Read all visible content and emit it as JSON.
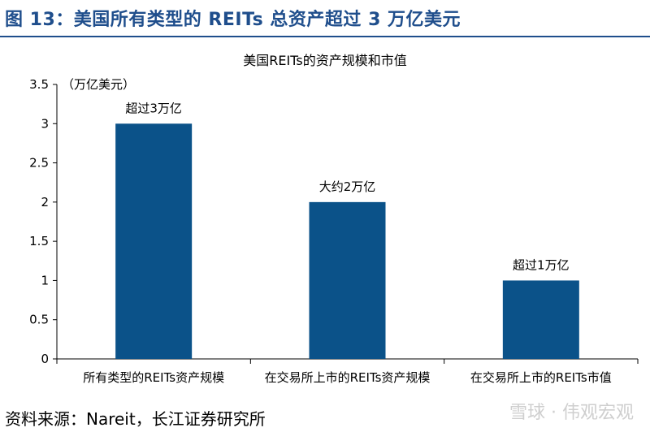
{
  "figure_title": "图 13：美国所有类型的 REITs 总资产超过 3 万亿美元",
  "source": "资料来源：Nareit，长江证券研究所",
  "watermark": "雪球 · 伟观宏观",
  "chart_data": {
    "type": "bar",
    "title": "美国REITs的资产规模和市值",
    "ylabel": "（万亿美元）",
    "xlabel": "",
    "ylim": [
      0,
      3.5
    ],
    "yticks": [
      0,
      0.5,
      1,
      1.5,
      2,
      2.5,
      3,
      3.5
    ],
    "ytick_labels": [
      "0",
      "0.5",
      "1",
      "1.5",
      "2",
      "2.5",
      "3",
      "3.5"
    ],
    "categories": [
      "所有类型的REITs资产规模",
      "在交易所上市的REITs资产规模",
      "在交易所上市的REITs市值"
    ],
    "values": [
      3,
      2,
      1
    ],
    "data_labels": [
      "超过3万亿",
      "大约2万亿",
      "超过1万亿"
    ],
    "bar_color": "#0b5289",
    "grid": false,
    "legend": "none"
  }
}
